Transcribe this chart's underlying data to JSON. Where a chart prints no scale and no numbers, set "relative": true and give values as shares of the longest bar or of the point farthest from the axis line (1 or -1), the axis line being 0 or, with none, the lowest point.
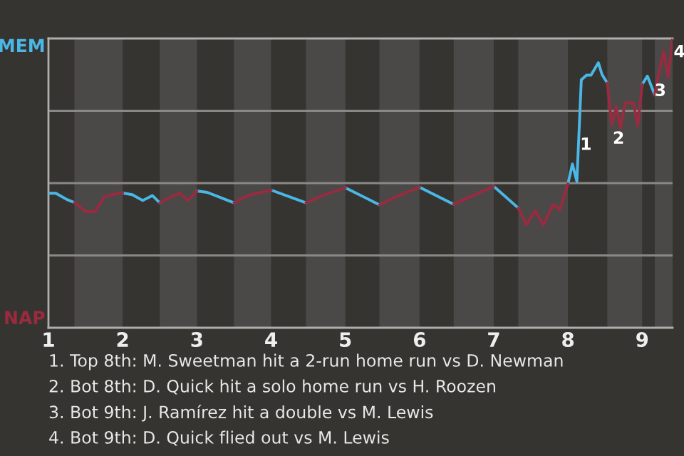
{
  "chart_data": {
    "type": "line",
    "relative": true,
    "xlim": [
      1,
      9.41
    ],
    "xticks": [
      1,
      2,
      3,
      4,
      5,
      6,
      7,
      8,
      9
    ],
    "marker": "none",
    "line_style": "solid",
    "series": [
      {
        "name": "MEM",
        "color": "#4ab8e6",
        "x": [
          1.0,
          1.1,
          1.25,
          1.35,
          null,
          2.0,
          2.13,
          2.27,
          2.4,
          2.5,
          null,
          3.0,
          3.14,
          3.5,
          null,
          4.0,
          4.47,
          null,
          5.0,
          5.46,
          null,
          6.0,
          6.46,
          null,
          7.0,
          7.33,
          null,
          8.0,
          8.06,
          8.12,
          8.18,
          8.25,
          8.31,
          8.41,
          8.46,
          8.53,
          null,
          9.0,
          9.07,
          9.17
        ],
        "values": [
          0.465,
          0.465,
          0.443,
          0.433,
          null,
          0.466,
          0.46,
          0.44,
          0.457,
          0.432,
          null,
          0.473,
          0.468,
          0.432,
          null,
          0.476,
          0.432,
          null,
          0.484,
          0.425,
          null,
          0.486,
          0.427,
          null,
          0.489,
          0.414,
          null,
          0.498,
          0.566,
          0.506,
          0.857,
          0.873,
          0.873,
          0.916,
          0.875,
          0.846,
          null,
          0.841,
          0.87,
          0.805
        ]
      },
      {
        "name": "NAP",
        "color": "#9a2a40",
        "x": [
          1.35,
          1.5,
          1.63,
          1.75,
          1.85,
          2.0,
          null,
          2.5,
          2.65,
          2.77,
          2.88,
          3.0,
          null,
          3.5,
          3.69,
          4.0,
          null,
          4.47,
          4.72,
          5.0,
          null,
          5.46,
          5.68,
          6.0,
          null,
          6.46,
          7.0,
          null,
          7.33,
          7.44,
          7.56,
          7.67,
          7.8,
          7.89,
          8.0,
          null,
          8.53,
          8.59,
          8.65,
          8.71,
          8.77,
          8.88,
          8.94,
          9.0,
          null,
          9.17,
          9.23,
          9.29,
          9.35,
          9.41
        ],
        "values": [
          0.433,
          0.402,
          0.402,
          0.452,
          0.46,
          0.466,
          null,
          0.432,
          0.452,
          0.465,
          0.44,
          0.473,
          null,
          0.432,
          0.457,
          0.476,
          null,
          0.432,
          0.46,
          0.484,
          null,
          0.425,
          0.452,
          0.486,
          null,
          0.427,
          0.489,
          null,
          0.414,
          0.356,
          0.405,
          0.356,
          0.427,
          0.407,
          0.498,
          null,
          0.846,
          0.701,
          0.764,
          0.69,
          0.777,
          0.777,
          0.698,
          0.841,
          null,
          0.805,
          0.887,
          0.956,
          0.866,
          1
        ]
      }
    ],
    "ref_lines": [
      {
        "axis": "y",
        "value": 0.25,
        "color": "#8a8886"
      },
      {
        "axis": "y",
        "value": 0.5,
        "color": "#8a8886"
      },
      {
        "axis": "y",
        "value": 0.75,
        "color": "#8a8886"
      }
    ],
    "bands": [
      {
        "axis": "x",
        "from": 1.35,
        "to": 2,
        "color": "#4b4947"
      },
      {
        "axis": "x",
        "from": 2.5,
        "to": 3,
        "color": "#4b4947"
      },
      {
        "axis": "x",
        "from": 3.5,
        "to": 4,
        "color": "#4b4947"
      },
      {
        "axis": "x",
        "from": 4.47,
        "to": 5,
        "color": "#4b4947"
      },
      {
        "axis": "x",
        "from": 5.46,
        "to": 6,
        "color": "#4b4947"
      },
      {
        "axis": "x",
        "from": 6.46,
        "to": 7,
        "color": "#4b4947"
      },
      {
        "axis": "x",
        "from": 7.33,
        "to": 8,
        "color": "#4b4947"
      },
      {
        "axis": "x",
        "from": 8.53,
        "to": 9,
        "color": "#4b4947"
      },
      {
        "axis": "x",
        "from": 9.17,
        "to": 9.41,
        "color": "#4b4947"
      }
    ],
    "annotations": [
      {
        "text": "1",
        "x": 8.15,
        "y": 0.68
      },
      {
        "text": "2",
        "x": 8.59,
        "y": 0.701
      },
      {
        "text": "3",
        "x": 9.35,
        "y": 0.866
      },
      {
        "text": "4",
        "x": 9.41,
        "y": 1
      },
      "1. Top 8th: M. Sweetman hit a 2-run home run vs D. Newman",
      "2. Bot 8th: D. Quick hit a solo home run vs H. Roozen",
      "3. Bot 9th: J. Ramírez hit a double vs M. Lewis",
      "4. Bot 9th: D. Quick flied out vs M. Lewis"
    ]
  }
}
